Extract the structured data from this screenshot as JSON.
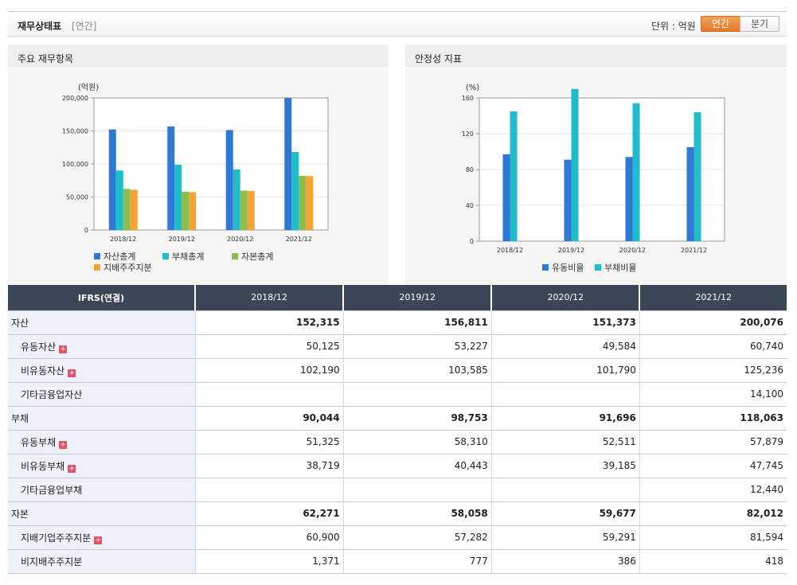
{
  "header": {
    "title": "재무상태표",
    "sub": "[연간]",
    "unit_label": "단위 : 억원",
    "btn_annual": "연간",
    "btn_quarter": "분기"
  },
  "left_panel": {
    "title": "주요 재무항목"
  },
  "right_panel": {
    "title": "안정성 지표"
  },
  "chart_data": [
    {
      "type": "bar",
      "title": "주요 재무항목",
      "unit": "(억원)",
      "categories": [
        "2018/12",
        "2019/12",
        "2020/12",
        "2021/12"
      ],
      "series": [
        {
          "name": "자산총계",
          "color": "#2f78d4",
          "values": [
            152315,
            156811,
            151373,
            200076
          ]
        },
        {
          "name": "부채총계",
          "color": "#1fbccb",
          "values": [
            90044,
            98753,
            91696,
            118063
          ]
        },
        {
          "name": "자본총계",
          "color": "#8bbf4f",
          "values": [
            62271,
            58058,
            59677,
            82012
          ]
        },
        {
          "name": "지배주주지분",
          "color": "#f5a333",
          "values": [
            60900,
            57282,
            59291,
            81594
          ]
        }
      ],
      "yticks": [
        "0",
        "50,000",
        "100,000",
        "150,000",
        "200,000"
      ],
      "ylim": [
        0,
        200000
      ]
    },
    {
      "type": "bar",
      "title": "안정성 지표",
      "unit": "(%)",
      "categories": [
        "2018/12",
        "2019/12",
        "2020/12",
        "2021/12"
      ],
      "series": [
        {
          "name": "유동비율",
          "color": "#2f78d4",
          "values": [
            97,
            91,
            94,
            105
          ]
        },
        {
          "name": "부채비율",
          "color": "#1fbccb",
          "values": [
            145,
            170,
            154,
            144
          ]
        }
      ],
      "yticks": [
        "0",
        "40",
        "80",
        "120",
        "160"
      ],
      "ylim": [
        0,
        160
      ]
    }
  ],
  "table": {
    "head": [
      "IFRS(연결)",
      "2018/12",
      "2019/12",
      "2020/12",
      "2021/12"
    ],
    "rows": [
      {
        "label": "자산",
        "level": "main",
        "plus": false,
        "values": [
          "152,315",
          "156,811",
          "151,373",
          "200,076"
        ]
      },
      {
        "label": "유동자산",
        "level": "sub",
        "plus": true,
        "values": [
          "50,125",
          "53,227",
          "49,584",
          "60,740"
        ]
      },
      {
        "label": "비유동자산",
        "level": "sub",
        "plus": true,
        "values": [
          "102,190",
          "103,585",
          "101,790",
          "125,236"
        ]
      },
      {
        "label": "기타금융업자산",
        "level": "sub",
        "plus": false,
        "values": [
          "",
          "",
          "",
          "14,100"
        ]
      },
      {
        "label": "부채",
        "level": "main",
        "plus": false,
        "values": [
          "90,044",
          "98,753",
          "91,696",
          "118,063"
        ]
      },
      {
        "label": "유동부채",
        "level": "sub",
        "plus": true,
        "values": [
          "51,325",
          "58,310",
          "52,511",
          "57,879"
        ]
      },
      {
        "label": "비유동부채",
        "level": "sub",
        "plus": true,
        "values": [
          "38,719",
          "40,443",
          "39,185",
          "47,745"
        ]
      },
      {
        "label": "기타금융업부채",
        "level": "sub",
        "plus": false,
        "values": [
          "",
          "",
          "",
          "12,440"
        ]
      },
      {
        "label": "자본",
        "level": "main",
        "plus": false,
        "values": [
          "62,271",
          "58,058",
          "59,677",
          "82,012"
        ]
      },
      {
        "label": "지배기업주주지분",
        "level": "sub",
        "plus": true,
        "values": [
          "60,900",
          "57,282",
          "59,291",
          "81,594"
        ]
      },
      {
        "label": "비지배주주지분",
        "level": "sub",
        "plus": false,
        "values": [
          "1,371",
          "777",
          "386",
          "418"
        ]
      }
    ]
  }
}
